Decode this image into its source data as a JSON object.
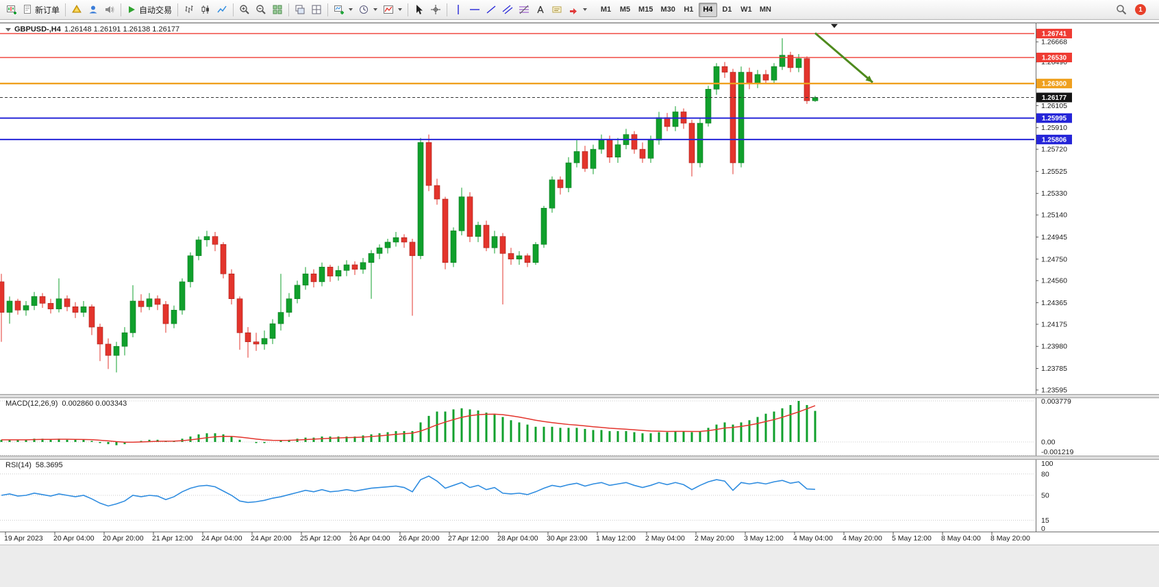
{
  "toolbar": {
    "new_order_label": "新订单",
    "autotrading_label": "自动交易",
    "timeframes": [
      "M1",
      "M5",
      "M15",
      "M30",
      "H1",
      "H4",
      "D1",
      "W1",
      "MN"
    ],
    "active_timeframe": "H4",
    "notification_count": "1"
  },
  "chart": {
    "symbol_title": "GBPUSD-,H4",
    "ohlc_text": "1.26148 1.26191 1.26138 1.26177"
  },
  "indicators": {
    "macd": {
      "name": "MACD(12,26,9)",
      "values": "0.002860 0.003343"
    },
    "rsi": {
      "name": "RSI(14)",
      "value": "58.3695"
    }
  },
  "chart_data": {
    "type": "candlestick",
    "symbol": "GBPUSD-",
    "period": "H4",
    "ylim": [
      1.235,
      1.2682
    ],
    "grid": false,
    "colors": {
      "up": "#10a02c",
      "down": "#e3342c",
      "up_border": "#0a7a20",
      "down_border": "#a7211b",
      "macd": "#10a02c",
      "signal": "#e3342c",
      "rsi": "#2e8ce0",
      "arrow": "#4e8a1d",
      "current_box": "#151515"
    },
    "price_ticks": [
      "1.26668",
      "1.26490",
      "1.26105",
      "1.25910",
      "1.25720",
      "1.25525",
      "1.25330",
      "1.25140",
      "1.24945",
      "1.24750",
      "1.24560",
      "1.24365",
      "1.24175",
      "1.23980",
      "1.23785",
      "1.23595"
    ],
    "time_labels": [
      "19 Apr 2023",
      "20 Apr 04:00",
      "20 Apr 20:00",
      "21 Apr 12:00",
      "24 Apr 04:00",
      "24 Apr 20:00",
      "25 Apr 12:00",
      "26 Apr 04:00",
      "26 Apr 20:00",
      "27 Apr 12:00",
      "28 Apr 04:00",
      "30 Apr 23:00",
      "1 May 12:00",
      "2 May 04:00",
      "2 May 20:00",
      "3 May 12:00",
      "4 May 04:00",
      "4 May 20:00",
      "5 May 12:00",
      "8 May 04:00",
      "8 May 20:00"
    ],
    "hlines": [
      {
        "price": 1.26741,
        "label": "1.26741",
        "color": "#ef3b32",
        "width": 1.4
      },
      {
        "price": 1.2653,
        "label": "1.26530",
        "color": "#ef3b32",
        "width": 1.4
      },
      {
        "price": 1.263,
        "label": "1.26300",
        "color": "#efa01e",
        "width": 2.4
      },
      {
        "price": 1.25995,
        "label": "1.25995",
        "color": "#2525d8",
        "width": 2
      },
      {
        "price": 1.25806,
        "label": "1.25806",
        "color": "#2525d8",
        "width": 2
      }
    ],
    "current_price": {
      "value": 1.26177,
      "label": "1.26177"
    },
    "trend_arrow": {
      "start_bar": 99,
      "start_price": 1.26745,
      "end_bar": 106,
      "end_price": 1.2631,
      "direction": "down-right"
    },
    "candles": [
      [
        1.2455,
        1.2462,
        1.2402,
        1.2428
      ],
      [
        1.2428,
        1.2442,
        1.2418,
        1.2438
      ],
      [
        1.2438,
        1.244,
        1.2426,
        1.243
      ],
      [
        1.243,
        1.2438,
        1.2425,
        1.2434
      ],
      [
        1.2434,
        1.2446,
        1.243,
        1.2442
      ],
      [
        1.2442,
        1.2445,
        1.2432,
        1.2436
      ],
      [
        1.2436,
        1.244,
        1.2427,
        1.2431
      ],
      [
        1.2431,
        1.2458,
        1.2428,
        1.244
      ],
      [
        1.244,
        1.2443,
        1.2429,
        1.2433
      ],
      [
        1.2433,
        1.2437,
        1.2423,
        1.2428
      ],
      [
        1.2428,
        1.2438,
        1.2424,
        1.2433
      ],
      [
        1.2433,
        1.2435,
        1.2408,
        1.2415
      ],
      [
        1.2415,
        1.2418,
        1.2385,
        1.24
      ],
      [
        1.24,
        1.2405,
        1.2378,
        1.239
      ],
      [
        1.239,
        1.2402,
        1.2375,
        1.2398
      ],
      [
        1.2398,
        1.2415,
        1.239,
        1.241
      ],
      [
        1.241,
        1.2452,
        1.2406,
        1.2438
      ],
      [
        1.2438,
        1.2444,
        1.2428,
        1.2433
      ],
      [
        1.2433,
        1.2445,
        1.243,
        1.244
      ],
      [
        1.244,
        1.2443,
        1.243,
        1.2435
      ],
      [
        1.2435,
        1.2438,
        1.241,
        1.2418
      ],
      [
        1.2418,
        1.2434,
        1.2414,
        1.243
      ],
      [
        1.243,
        1.2458,
        1.2426,
        1.2455
      ],
      [
        1.2455,
        1.2481,
        1.245,
        1.2478
      ],
      [
        1.2478,
        1.2495,
        1.2474,
        1.2492
      ],
      [
        1.2492,
        1.25,
        1.2486,
        1.2495
      ],
      [
        1.2495,
        1.2499,
        1.2482,
        1.2488
      ],
      [
        1.2488,
        1.249,
        1.2458,
        1.2462
      ],
      [
        1.2462,
        1.2466,
        1.2435,
        1.244
      ],
      [
        1.244,
        1.2442,
        1.2395,
        1.241
      ],
      [
        1.241,
        1.2415,
        1.2388,
        1.2402
      ],
      [
        1.2402,
        1.241,
        1.2394,
        1.24
      ],
      [
        1.24,
        1.2412,
        1.2395,
        1.2405
      ],
      [
        1.2405,
        1.2422,
        1.24,
        1.2418
      ],
      [
        1.2418,
        1.2462,
        1.2412,
        1.2428
      ],
      [
        1.2428,
        1.2445,
        1.2424,
        1.244
      ],
      [
        1.244,
        1.2456,
        1.2436,
        1.2452
      ],
      [
        1.2452,
        1.2468,
        1.2448,
        1.2462
      ],
      [
        1.2462,
        1.2466,
        1.245,
        1.2455
      ],
      [
        1.2455,
        1.2472,
        1.2451,
        1.2468
      ],
      [
        1.2468,
        1.247,
        1.2455,
        1.246
      ],
      [
        1.246,
        1.2469,
        1.2456,
        1.2465
      ],
      [
        1.2465,
        1.2474,
        1.246,
        1.247
      ],
      [
        1.247,
        1.2473,
        1.2461,
        1.2466
      ],
      [
        1.2466,
        1.2476,
        1.2462,
        1.2472
      ],
      [
        1.2472,
        1.2483,
        1.244,
        1.248
      ],
      [
        1.248,
        1.2488,
        1.2475,
        1.2485
      ],
      [
        1.2485,
        1.2493,
        1.248,
        1.249
      ],
      [
        1.249,
        1.2499,
        1.2486,
        1.2494
      ],
      [
        1.2494,
        1.2497,
        1.2485,
        1.249
      ],
      [
        1.249,
        1.2493,
        1.2425,
        1.2478
      ],
      [
        1.2478,
        1.2582,
        1.2475,
        1.2578
      ],
      [
        1.2578,
        1.2585,
        1.2535,
        1.254
      ],
      [
        1.254,
        1.2546,
        1.2523,
        1.2528
      ],
      [
        1.2528,
        1.253,
        1.2466,
        1.2472
      ],
      [
        1.2472,
        1.2503,
        1.2468,
        1.25
      ],
      [
        1.25,
        1.2538,
        1.2496,
        1.253
      ],
      [
        1.253,
        1.2534,
        1.249,
        1.2495
      ],
      [
        1.2495,
        1.2508,
        1.249,
        1.2505
      ],
      [
        1.2505,
        1.2509,
        1.2482,
        1.2485
      ],
      [
        1.2485,
        1.25,
        1.248,
        1.2495
      ],
      [
        1.2495,
        1.2498,
        1.2435,
        1.248
      ],
      [
        1.248,
        1.2485,
        1.247,
        1.2475
      ],
      [
        1.2475,
        1.2482,
        1.247,
        1.2478
      ],
      [
        1.2478,
        1.248,
        1.2468,
        1.2472
      ],
      [
        1.2472,
        1.249,
        1.247,
        1.2488
      ],
      [
        1.2488,
        1.2522,
        1.2485,
        1.252
      ],
      [
        1.252,
        1.2548,
        1.2516,
        1.2545
      ],
      [
        1.2545,
        1.2548,
        1.2532,
        1.2538
      ],
      [
        1.2538,
        1.2565,
        1.2534,
        1.256
      ],
      [
        1.256,
        1.258,
        1.2556,
        1.257
      ],
      [
        1.257,
        1.2575,
        1.2552,
        1.2555
      ],
      [
        1.2555,
        1.2576,
        1.255,
        1.2572
      ],
      [
        1.2572,
        1.2585,
        1.2568,
        1.258
      ],
      [
        1.258,
        1.2584,
        1.256,
        1.2565
      ],
      [
        1.2565,
        1.2582,
        1.256,
        1.2576
      ],
      [
        1.2576,
        1.259,
        1.2572,
        1.2585
      ],
      [
        1.2585,
        1.2588,
        1.2568,
        1.2572
      ],
      [
        1.2572,
        1.2578,
        1.256,
        1.2564
      ],
      [
        1.2564,
        1.2584,
        1.256,
        1.258
      ],
      [
        1.258,
        1.2605,
        1.2576,
        1.26
      ],
      [
        1.26,
        1.2604,
        1.2588,
        1.2592
      ],
      [
        1.2592,
        1.261,
        1.2588,
        1.2605
      ],
      [
        1.2605,
        1.2608,
        1.259,
        1.2595
      ],
      [
        1.2595,
        1.2598,
        1.2548,
        1.256
      ],
      [
        1.256,
        1.26,
        1.2556,
        1.2595
      ],
      [
        1.2595,
        1.2628,
        1.2592,
        1.2625
      ],
      [
        1.2625,
        1.2648,
        1.262,
        1.2645
      ],
      [
        1.2645,
        1.2649,
        1.2635,
        1.264
      ],
      [
        1.264,
        1.2643,
        1.255,
        1.256
      ],
      [
        1.256,
        1.2645,
        1.2556,
        1.264
      ],
      [
        1.264,
        1.2644,
        1.2625,
        1.263
      ],
      [
        1.263,
        1.2642,
        1.2626,
        1.2638
      ],
      [
        1.2638,
        1.2642,
        1.263,
        1.2633
      ],
      [
        1.2633,
        1.2648,
        1.263,
        1.2645
      ],
      [
        1.2645,
        1.267,
        1.2642,
        1.2655
      ],
      [
        1.2655,
        1.2658,
        1.264,
        1.2644
      ],
      [
        1.2644,
        1.2656,
        1.264,
        1.2652
      ],
      [
        1.2652,
        1.2654,
        1.2612,
        1.26148
      ],
      [
        1.26148,
        1.26191,
        1.26138,
        1.26177
      ]
    ],
    "macd": {
      "ymax": 0.003779,
      "ymin": -0.001219,
      "scale_labels": [
        "0.003779",
        "0.00",
        "-0.001219"
      ],
      "hist": [
        0.0002,
        0.0002,
        0.0002,
        0.0002,
        0.0003,
        0.0003,
        0.0002,
        0.0003,
        0.0002,
        0.0002,
        0.0002,
        0.0001,
        -0.0001,
        -0.0002,
        -0.0003,
        -0.0002,
        0.0,
        0.0001,
        0.0002,
        0.0002,
        0.0001,
        0.0001,
        0.0003,
        0.0005,
        0.0007,
        0.0008,
        0.0008,
        0.0007,
        0.0005,
        0.0002,
        0.0,
        -0.0001,
        -0.0001,
        0.0,
        0.0001,
        0.0002,
        0.0003,
        0.0004,
        0.0004,
        0.0005,
        0.0005,
        0.0005,
        0.0005,
        0.0005,
        0.0006,
        0.0007,
        0.0008,
        0.0009,
        0.001,
        0.001,
        0.001,
        0.0018,
        0.0024,
        0.0028,
        0.0028,
        0.003,
        0.0031,
        0.003,
        0.0029,
        0.0027,
        0.0026,
        0.0023,
        0.002,
        0.0018,
        0.0016,
        0.0014,
        0.0014,
        0.0014,
        0.0013,
        0.0013,
        0.0013,
        0.0012,
        0.0011,
        0.0011,
        0.001,
        0.001,
        0.001,
        0.0009,
        0.0008,
        0.0008,
        0.0009,
        0.0009,
        0.001,
        0.001,
        0.0009,
        0.001,
        0.0013,
        0.0016,
        0.0018,
        0.0016,
        0.0018,
        0.002,
        0.0023,
        0.0026,
        0.0028,
        0.0031,
        0.0034,
        0.00378,
        0.0034,
        0.00286
      ],
      "signal": [
        0.0002,
        0.0002,
        0.0002,
        0.0002,
        0.00022,
        0.00024,
        0.00024,
        0.00025,
        0.00025,
        0.00024,
        0.00023,
        0.00021,
        0.00016,
        0.0001,
        3e-05,
        -2e-05,
        -2e-05,
        0.0,
        3e-05,
        6e-05,
        7e-05,
        8e-05,
        0.00012,
        0.00019,
        0.00029,
        0.00039,
        0.00047,
        0.00052,
        0.00051,
        0.00045,
        0.00036,
        0.00027,
        0.00019,
        0.00015,
        0.00014,
        0.00015,
        0.00018,
        0.00022,
        0.00026,
        0.0003,
        0.00034,
        0.00037,
        0.0004,
        0.00042,
        0.00045,
        0.0005,
        0.00056,
        0.00063,
        0.0007,
        0.00076,
        0.00081,
        0.001,
        0.00128,
        0.00158,
        0.00183,
        0.00206,
        0.00227,
        0.00242,
        0.00251,
        0.00255,
        0.00256,
        0.00251,
        0.00241,
        0.00229,
        0.00215,
        0.002,
        0.00188,
        0.00178,
        0.00169,
        0.00161,
        0.00155,
        0.00148,
        0.0014,
        0.00134,
        0.00127,
        0.00122,
        0.00117,
        0.00112,
        0.00106,
        0.00101,
        0.00099,
        0.00097,
        0.00098,
        0.00098,
        0.00097,
        0.00097,
        0.00104,
        0.00115,
        0.00128,
        0.00134,
        0.00143,
        0.00155,
        0.0017,
        0.00188,
        0.00206,
        0.00227,
        0.00252,
        0.00277,
        0.00305,
        0.003343
      ]
    },
    "rsi": {
      "levels": [
        80,
        50,
        15
      ],
      "scale_labels": [
        "100",
        "80",
        "50",
        "15",
        "0"
      ],
      "scale_values": [
        100,
        80,
        50,
        15,
        0
      ],
      "values": [
        50,
        52,
        49,
        50,
        53,
        51,
        49,
        52,
        50,
        48,
        50,
        45,
        39,
        35,
        38,
        42,
        50,
        48,
        50,
        49,
        44,
        48,
        55,
        60,
        63,
        64,
        62,
        56,
        50,
        42,
        40,
        41,
        43,
        46,
        48,
        51,
        54,
        57,
        55,
        58,
        55,
        56,
        58,
        56,
        58,
        60,
        61,
        62,
        63,
        61,
        55,
        72,
        77,
        70,
        60,
        64,
        68,
        61,
        64,
        58,
        61,
        53,
        52,
        53,
        51,
        55,
        60,
        64,
        62,
        65,
        67,
        63,
        66,
        68,
        64,
        66,
        68,
        64,
        61,
        64,
        68,
        65,
        68,
        65,
        58,
        64,
        69,
        72,
        70,
        57,
        68,
        66,
        68,
        66,
        69,
        71,
        67,
        69,
        59,
        58.37
      ]
    }
  }
}
